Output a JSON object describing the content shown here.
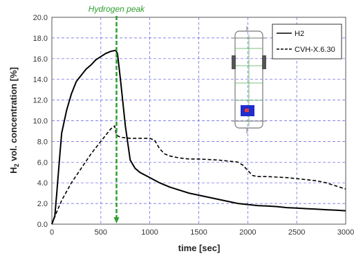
{
  "chart_data": {
    "type": "line",
    "xlabel": "time [sec]",
    "ylabel_main": "H",
    "ylabel_sub": "2",
    "ylabel_rest": " vol. concentration [%]",
    "xlim": [
      0,
      3000
    ],
    "ylim": [
      0,
      20
    ],
    "x_ticks": [
      "0",
      "500",
      "1000",
      "1500",
      "2000",
      "2500",
      "3000"
    ],
    "y_ticks": [
      "0.0",
      "2.0",
      "4.0",
      "6.0",
      "8.0",
      "10.0",
      "12.0",
      "14.0",
      "16.0",
      "18.0",
      "20.0"
    ],
    "grid": true,
    "legend_position": "top-right",
    "annotation": {
      "text": "Hydrogen peak",
      "x": 660,
      "color": "#2e9e2e"
    },
    "series": [
      {
        "name": "H2",
        "style": "solid",
        "color": "#000000",
        "x": [
          0,
          30,
          50,
          80,
          100,
          150,
          200,
          250,
          300,
          350,
          400,
          450,
          500,
          550,
          600,
          650,
          670,
          700,
          750,
          800,
          850,
          900,
          1000,
          1100,
          1200,
          1300,
          1400,
          1500,
          1600,
          1700,
          1800,
          1900,
          2000,
          2100,
          2200,
          2300,
          2400,
          2500,
          2600,
          2700,
          2800,
          2900,
          3000
        ],
        "y": [
          0.0,
          0.8,
          3.0,
          6.5,
          8.8,
          11.0,
          12.6,
          13.8,
          14.4,
          15.0,
          15.4,
          15.9,
          16.2,
          16.5,
          16.7,
          16.8,
          16.5,
          14.0,
          9.5,
          6.2,
          5.4,
          5.0,
          4.5,
          4.0,
          3.6,
          3.3,
          3.0,
          2.8,
          2.6,
          2.4,
          2.2,
          2.0,
          1.9,
          1.8,
          1.75,
          1.7,
          1.6,
          1.55,
          1.5,
          1.45,
          1.4,
          1.35,
          1.3
        ]
      },
      {
        "name": "CVH-X.6.30",
        "style": "dashed",
        "color": "#000000",
        "x": [
          0,
          50,
          100,
          200,
          300,
          400,
          500,
          600,
          640,
          660,
          700,
          800,
          900,
          1000,
          1050,
          1100,
          1150,
          1200,
          1300,
          1400,
          1500,
          1600,
          1700,
          1800,
          1900,
          1950,
          2000,
          2050,
          2100,
          2200,
          2300,
          2400,
          2500,
          2600,
          2700,
          2800,
          2900,
          3000
        ],
        "y": [
          0.0,
          1.2,
          2.3,
          4.0,
          5.4,
          6.8,
          8.0,
          9.2,
          9.5,
          8.6,
          8.4,
          8.3,
          8.3,
          8.3,
          8.1,
          7.3,
          6.8,
          6.6,
          6.4,
          6.3,
          6.3,
          6.25,
          6.2,
          6.1,
          6.0,
          5.7,
          5.2,
          4.7,
          4.6,
          4.6,
          4.55,
          4.5,
          4.4,
          4.3,
          4.2,
          4.0,
          3.7,
          3.4
        ]
      }
    ]
  }
}
